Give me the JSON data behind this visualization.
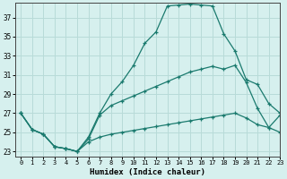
{
  "xlabel": "Humidex (Indice chaleur)",
  "background_color": "#d6f0ee",
  "grid_color": "#b8dbd8",
  "line_color": "#1a7a6e",
  "xlim": [
    -0.5,
    23
  ],
  "ylim": [
    22.5,
    38.5
  ],
  "yticks": [
    23,
    25,
    27,
    29,
    31,
    33,
    35,
    37
  ],
  "xticks": [
    0,
    1,
    2,
    3,
    4,
    5,
    6,
    7,
    8,
    9,
    10,
    11,
    12,
    13,
    14,
    15,
    16,
    17,
    18,
    19,
    20,
    21,
    22,
    23
  ],
  "series1_x": [
    0,
    1,
    2,
    3,
    4,
    5,
    6,
    7,
    8,
    9,
    10,
    11,
    12,
    13,
    14,
    15,
    16,
    17,
    18,
    19,
    20,
    21,
    22,
    23
  ],
  "series1_y": [
    27.0,
    25.3,
    24.8,
    23.5,
    23.3,
    23.0,
    24.5,
    27.0,
    29.0,
    30.3,
    32.0,
    34.3,
    35.5,
    38.2,
    38.3,
    38.4,
    38.3,
    38.2,
    35.3,
    33.5,
    30.5,
    30.0,
    28.0,
    27.0
  ],
  "series2_x": [
    0,
    1,
    2,
    3,
    4,
    5,
    6,
    7,
    8,
    9,
    10,
    11,
    12,
    13,
    14,
    15,
    16,
    17,
    18,
    19,
    20,
    21,
    22,
    23
  ],
  "series2_y": [
    27.0,
    25.3,
    24.8,
    23.5,
    23.3,
    23.0,
    24.3,
    26.8,
    27.8,
    28.3,
    28.8,
    29.3,
    29.8,
    30.3,
    30.8,
    31.3,
    31.6,
    31.9,
    31.6,
    32.0,
    30.2,
    27.5,
    25.5,
    25.0
  ],
  "series3_x": [
    0,
    1,
    2,
    3,
    4,
    5,
    6,
    7,
    8,
    9,
    10,
    11,
    12,
    13,
    14,
    15,
    16,
    17,
    18,
    19,
    20,
    21,
    22,
    23
  ],
  "series3_y": [
    27.0,
    25.3,
    24.8,
    23.5,
    23.3,
    23.0,
    24.0,
    24.5,
    24.8,
    25.0,
    25.2,
    25.4,
    25.6,
    25.8,
    26.0,
    26.2,
    26.4,
    26.6,
    26.8,
    27.0,
    26.5,
    25.8,
    25.5,
    26.8
  ]
}
